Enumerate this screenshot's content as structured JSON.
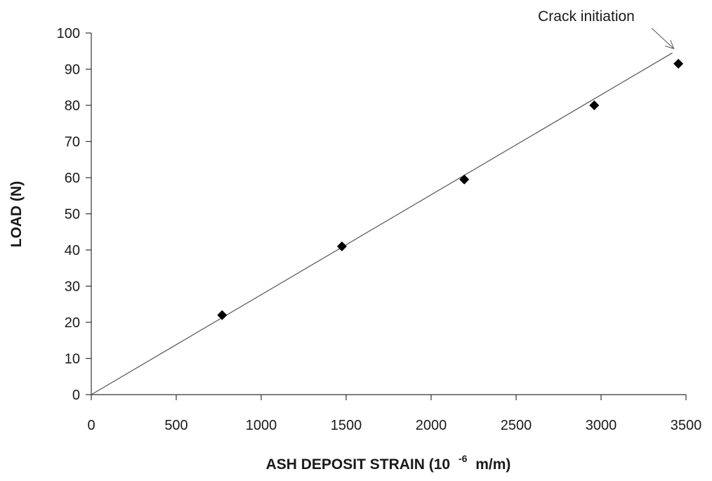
{
  "chart_data": {
    "type": "scatter",
    "title": "",
    "xlabel": "ASH DEPOSIT STRAIN (10",
    "xlabel_exponent": "-6",
    "xlabel_unit": "m/m)",
    "ylabel": "LOAD (N)",
    "xlim": [
      0,
      3500
    ],
    "ylim": [
      0,
      100
    ],
    "xticks": [
      0,
      500,
      1000,
      1500,
      2000,
      2500,
      3000,
      3500
    ],
    "yticks": [
      0,
      10,
      20,
      30,
      40,
      50,
      60,
      70,
      80,
      90,
      100
    ],
    "grid": false,
    "legend": "none",
    "series": [
      {
        "marker": "diamond",
        "color": "#000000",
        "x": [
          770,
          1475,
          2195,
          2960,
          3455
        ],
        "y": [
          22,
          41,
          59.5,
          80,
          91.5
        ]
      }
    ],
    "trendline": {
      "x": [
        0,
        3420
      ],
      "y": [
        0,
        94.5
      ],
      "color": "#555555"
    },
    "annotations": [
      {
        "text": "Crack initiation",
        "points_to": {
          "x": 3420,
          "y": 94.5
        }
      }
    ]
  }
}
